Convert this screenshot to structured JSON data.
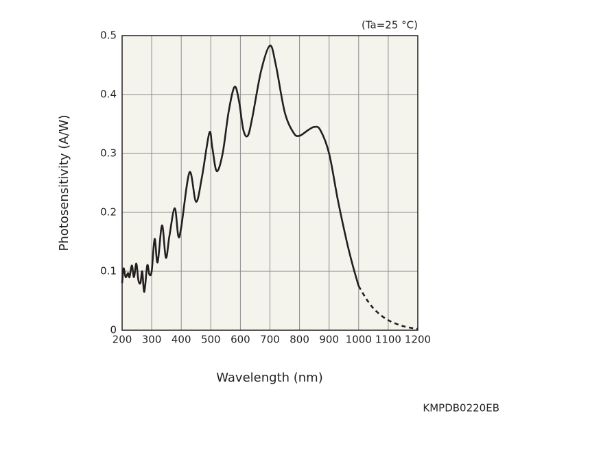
{
  "chart_data": {
    "type": "line",
    "annotation": "(Ta=25 °C)",
    "xlabel": "Wavelength (nm)",
    "ylabel": "Photosensitivity (A/W)",
    "code": "KMPDB0220EB",
    "x": [
      200,
      205,
      212,
      220,
      225,
      233,
      240,
      248,
      255,
      262,
      268,
      275,
      285,
      292,
      300,
      310,
      320,
      335,
      348,
      360,
      378,
      390,
      400,
      428,
      450,
      470,
      495,
      505,
      520,
      540,
      560,
      580,
      595,
      610,
      625,
      640,
      670,
      700,
      720,
      750,
      780,
      800,
      830,
      850,
      870,
      900,
      930,
      960,
      980,
      1000,
      1030,
      1060,
      1100,
      1150,
      1200
    ],
    "series": [
      {
        "color": "#231f20",
        "line_style": "solid",
        "values": [
          0.08,
          0.105,
          0.09,
          0.097,
          0.09,
          0.11,
          0.09,
          0.113,
          0.085,
          0.08,
          0.1,
          0.065,
          0.11,
          0.095,
          0.1,
          0.155,
          0.115,
          0.178,
          0.123,
          0.16,
          0.207,
          0.16,
          0.175,
          0.268,
          0.218,
          0.26,
          0.335,
          0.31,
          0.27,
          0.3,
          0.37,
          0.413,
          0.39,
          0.34,
          0.33,
          0.36,
          0.44,
          0.483,
          0.45,
          0.37,
          0.335,
          0.33,
          0.34,
          0.345,
          0.34,
          0.3,
          0.22,
          0.15,
          0.11,
          0.075,
          null,
          null,
          null,
          null,
          null
        ]
      },
      {
        "color": "#231f20",
        "line_style": "dashed",
        "values": [
          null,
          null,
          null,
          null,
          null,
          null,
          null,
          null,
          null,
          null,
          null,
          null,
          null,
          null,
          null,
          null,
          null,
          null,
          null,
          null,
          null,
          null,
          null,
          null,
          null,
          null,
          null,
          null,
          null,
          null,
          null,
          null,
          null,
          null,
          null,
          null,
          null,
          null,
          null,
          null,
          null,
          null,
          null,
          null,
          null,
          null,
          null,
          null,
          null,
          0.075,
          0.05,
          0.032,
          0.017,
          0.007,
          0.002
        ]
      }
    ],
    "xlim": [
      200,
      1200
    ],
    "ylim": [
      0,
      0.5
    ],
    "xticks": [
      200,
      300,
      400,
      500,
      600,
      700,
      800,
      900,
      1000,
      1100,
      1200
    ],
    "yticks": [
      0,
      0.1,
      0.2,
      0.3,
      0.4,
      0.5
    ],
    "grid": true
  }
}
